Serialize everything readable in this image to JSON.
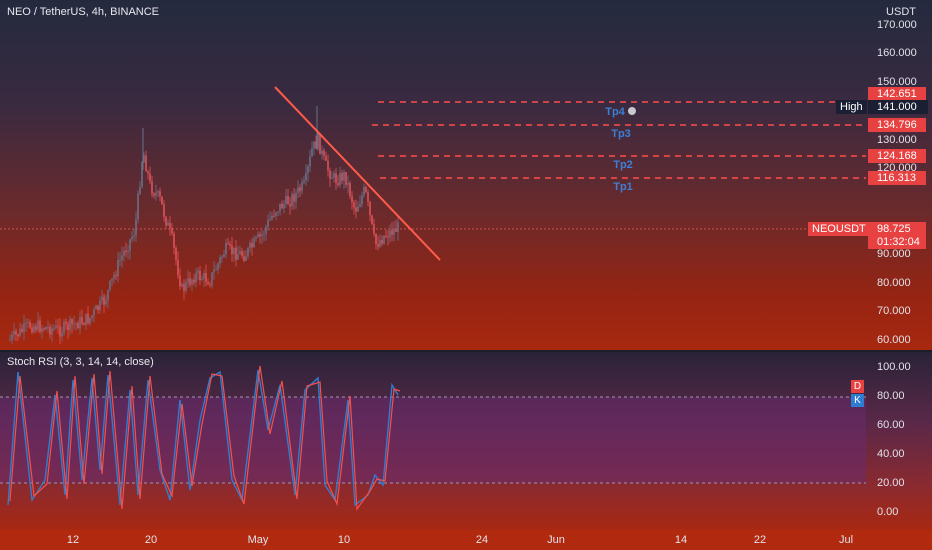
{
  "header": {
    "symbol_title": "NEO / TetherUS, 4h, BINANCE",
    "currency": "USDT"
  },
  "price_axis": {
    "labels": [
      "170.000",
      "160.000",
      "150.000",
      "130.000",
      "120.000",
      "90.000",
      "80.000",
      "70.000",
      "60.000"
    ]
  },
  "target_levels": [
    {
      "name": "Tp4",
      "price": "142.651"
    },
    {
      "name": "Tp3",
      "price": "134.796"
    },
    {
      "name": "Tp2",
      "price": "124.168"
    },
    {
      "name": "Tp1",
      "price": "116.313"
    }
  ],
  "high": {
    "label": "High",
    "price": "141.000"
  },
  "current": {
    "symbol": "NEOUSDT",
    "price": "98.725",
    "countdown": "01:32:04"
  },
  "rsi": {
    "title": "Stoch RSI (3, 3, 14, 14, close)",
    "axis_labels": [
      "100.00",
      "80.00",
      "60.00",
      "40.00",
      "20.00",
      "0.00"
    ],
    "keys": {
      "d": "D",
      "k": "K"
    }
  },
  "time_axis": {
    "labels": [
      "12",
      "20",
      "May",
      "10",
      "24",
      "Jun",
      "14",
      "22",
      "Jul"
    ]
  },
  "colors": {
    "trendline": "#ff5b4c",
    "target_line": "#ff4d4d",
    "rsi_k": "#2f7dd1",
    "rsi_d": "#f4514a",
    "up_candle": "#6a7088",
    "down_candle": "#e0525a"
  }
}
